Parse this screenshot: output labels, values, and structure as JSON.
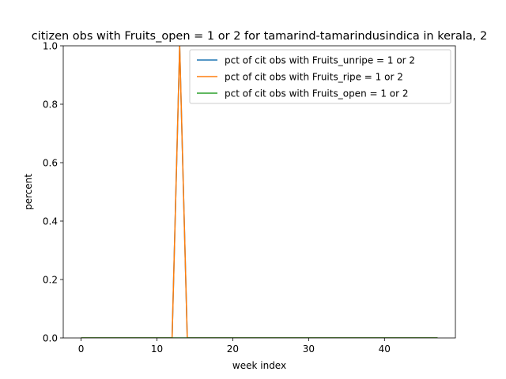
{
  "chart_data": {
    "type": "line",
    "title": "citizen obs with Fruits_open = 1 or 2 for tamarind-tamarindusindica in kerala, 2",
    "xlabel": "week index",
    "ylabel": "percent",
    "xlim": [
      -2.35,
      49.35
    ],
    "ylim": [
      0,
      1
    ],
    "x_ticks": [
      0,
      10,
      20,
      30,
      40
    ],
    "y_ticks": [
      0.0,
      0.2,
      0.4,
      0.6,
      0.8,
      1.0
    ],
    "x_tick_labels": [
      "0",
      "10",
      "20",
      "30",
      "40"
    ],
    "y_tick_labels": [
      "0.0",
      "0.2",
      "0.4",
      "0.6",
      "0.8",
      "1.0"
    ],
    "grid": false,
    "legend_position": "upper-right",
    "series": [
      {
        "name": "pct of cit obs with Fruits_unripe = 1 or 2",
        "color": "#1f77b4",
        "x": [
          0,
          1,
          2,
          3,
          4,
          5,
          6,
          7,
          8,
          9,
          10,
          11,
          12,
          13,
          14,
          15,
          16,
          17,
          18,
          19,
          20,
          21,
          22,
          23,
          24,
          25,
          26,
          27,
          28,
          29,
          30,
          31,
          32,
          33,
          34,
          35,
          36,
          37,
          38,
          39,
          40,
          41,
          42,
          43,
          44,
          45,
          46,
          47
        ],
        "y": [
          0,
          0,
          0,
          0,
          0,
          0,
          0,
          0,
          0,
          0,
          0,
          0,
          0,
          1,
          0,
          0,
          0,
          0,
          0,
          0,
          0,
          0,
          0,
          0,
          0,
          0,
          0,
          0,
          0,
          0,
          0,
          0,
          0,
          0,
          0,
          0,
          0,
          0,
          0,
          0,
          0,
          0,
          0,
          0,
          0,
          0,
          0,
          0
        ]
      },
      {
        "name": "pct of cit obs with Fruits_ripe = 1 or 2",
        "color": "#ff7f0e",
        "x": [
          0,
          1,
          2,
          3,
          4,
          5,
          6,
          7,
          8,
          9,
          10,
          11,
          12,
          13,
          14,
          15,
          16,
          17,
          18,
          19,
          20,
          21,
          22,
          23,
          24,
          25,
          26,
          27,
          28,
          29,
          30,
          31,
          32,
          33,
          34,
          35,
          36,
          37,
          38,
          39,
          40,
          41,
          42,
          43,
          44,
          45,
          46,
          47
        ],
        "y": [
          0,
          0,
          0,
          0,
          0,
          0,
          0,
          0,
          0,
          0,
          0,
          0,
          0,
          1,
          0,
          0,
          0,
          0,
          0,
          0,
          0,
          0,
          0,
          0,
          0,
          0,
          0,
          0,
          0,
          0,
          0,
          0,
          0,
          0,
          0,
          0,
          0,
          0,
          0,
          0,
          0,
          0,
          0,
          0,
          0,
          0,
          0,
          0
        ]
      },
      {
        "name": "pct of cit obs with Fruits_open = 1 or 2",
        "color": "#2ca02c",
        "x": [
          0,
          1,
          2,
          3,
          4,
          5,
          6,
          7,
          8,
          9,
          10,
          11,
          12,
          13,
          14,
          15,
          16,
          17,
          18,
          19,
          20,
          21,
          22,
          23,
          24,
          25,
          26,
          27,
          28,
          29,
          30,
          31,
          32,
          33,
          34,
          35,
          36,
          37,
          38,
          39,
          40,
          41,
          42,
          43,
          44,
          45,
          46,
          47
        ],
        "y": [
          0,
          0,
          0,
          0,
          0,
          0,
          0,
          0,
          0,
          0,
          0,
          0,
          0,
          0,
          0,
          0,
          0,
          0,
          0,
          0,
          0,
          0,
          0,
          0,
          0,
          0,
          0,
          0,
          0,
          0,
          0,
          0,
          0,
          0,
          0,
          0,
          0,
          0,
          0,
          0,
          0,
          0,
          0,
          0,
          0,
          0,
          0,
          0
        ]
      }
    ]
  }
}
